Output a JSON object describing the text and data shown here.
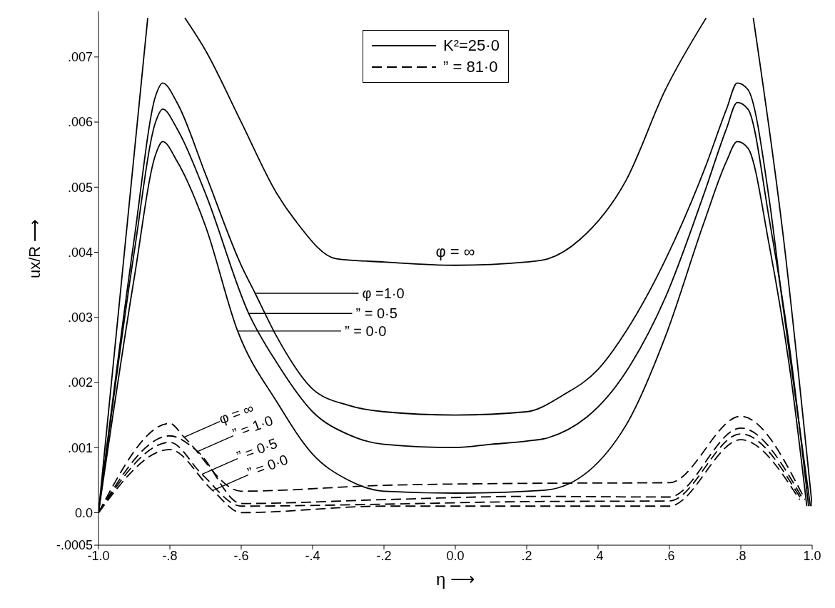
{
  "chart_data": {
    "type": "line",
    "xlabel": "η ⟶",
    "ylabel": "ux/R ⟶",
    "xlim": [
      -1,
      1
    ],
    "xticks": [
      {
        "value": -1,
        "label": "-1.0"
      },
      {
        "value": -0.8,
        "label": "-.8"
      },
      {
        "value": -0.6,
        "label": "-.6"
      },
      {
        "value": -0.4,
        "label": "-.4"
      },
      {
        "value": -0.2,
        "label": "-.2"
      },
      {
        "value": 0,
        "label": "0.0"
      },
      {
        "value": 0.2,
        "label": ".2"
      },
      {
        "value": 0.4,
        "label": ".4"
      },
      {
        "value": 0.6,
        "label": ".6"
      },
      {
        "value": 0.8,
        "label": ".8"
      },
      {
        "value": 1,
        "label": "1.0"
      }
    ],
    "ylim": [
      -0.0005,
      0.0077
    ],
    "yticks": [
      {
        "value": -0.0005,
        "label": "-.0005"
      },
      {
        "value": 0,
        "label": "0.0"
      },
      {
        "value": 0.001,
        "label": ".001"
      },
      {
        "value": 0.002,
        "label": ".002"
      },
      {
        "value": 0.003,
        "label": ".003"
      },
      {
        "value": 0.004,
        "label": ".004"
      },
      {
        "value": 0.005,
        "label": ".005"
      },
      {
        "value": 0.006,
        "label": ".006"
      },
      {
        "value": 0.007,
        "label": ".007"
      }
    ],
    "series": [
      {
        "color": "#000000",
        "line_style": "solid",
        "x": [
          -1,
          -0.862,
          -0.81,
          -0.758,
          -0.7,
          -0.6,
          -0.5,
          -0.45,
          -0.333,
          -0.2,
          0,
          0.2,
          0.26,
          0.35,
          0.478,
          0.589,
          0.703,
          0.77,
          0.835,
          0.92,
          1
        ],
        "values": [
          0,
          0.0076,
          null,
          0.0076,
          0.0071,
          0.006,
          0.0049,
          0.0045,
          0.0039,
          0.00385,
          0.0038,
          0.00385,
          0.0039,
          0.0042,
          0.0051,
          0.0065,
          0.0076,
          null,
          0.0076,
          0.0042,
          0.0001
        ]
      },
      {
        "color": "#000000",
        "line_style": "solid",
        "x": [
          -1,
          -0.9,
          -0.84,
          -0.82,
          -0.78,
          -0.7,
          -0.6,
          -0.561,
          -0.5,
          -0.4,
          -0.3,
          -0.2,
          0,
          0.2,
          0.3,
          0.4,
          0.48,
          0.59,
          0.7,
          0.76,
          0.79,
          0.82,
          0.88,
          0.915,
          0.995
        ],
        "values": [
          0,
          0.0042,
          0.0064,
          0.0066,
          0.0063,
          0.0052,
          0.0038,
          0.00337,
          0.0027,
          0.0019,
          0.00165,
          0.00155,
          0.0015,
          0.00155,
          0.0018,
          0.0022,
          0.0028,
          0.0039,
          0.0053,
          0.0062,
          0.0066,
          0.0065,
          0.0048,
          0.0033,
          0.0001
        ]
      },
      {
        "color": "#000000",
        "line_style": "solid",
        "x": [
          -1,
          -0.9,
          -0.84,
          -0.82,
          -0.78,
          -0.7,
          -0.579,
          -0.5,
          -0.4,
          -0.3,
          -0.2,
          0,
          0.1,
          0.2,
          0.26,
          0.478,
          0.589,
          0.697,
          0.76,
          0.79,
          0.82,
          0.88,
          0.94,
          0.99
        ],
        "values": [
          0,
          0.004,
          0.006,
          0.0062,
          0.0059,
          0.0049,
          0.00306,
          0.0023,
          0.00155,
          0.0012,
          0.00105,
          0.001,
          0.00105,
          0.0011,
          0.00115,
          0.00216,
          0.00331,
          0.0049,
          0.0059,
          0.0063,
          0.0062,
          0.0045,
          0.0024,
          0.0001
        ]
      },
      {
        "color": "#000000",
        "line_style": "solid",
        "x": [
          -1,
          -0.9,
          -0.84,
          -0.82,
          -0.78,
          -0.7,
          -0.61,
          -0.5,
          -0.4,
          -0.3,
          -0.2,
          0,
          0.2,
          0.26,
          0.478,
          0.589,
          0.697,
          0.76,
          0.79,
          0.82,
          0.88,
          0.94,
          0.985
        ],
        "values": [
          0,
          0.0036,
          0.0055,
          0.0057,
          0.0054,
          0.0044,
          0.00279,
          0.0017,
          0.0009,
          0.0005,
          0.00033,
          0.0003,
          0.00033,
          0.00035,
          0.00134,
          0.00271,
          0.00446,
          0.0054,
          0.0057,
          0.0056,
          0.0041,
          0.0021,
          0.0001
        ]
      },
      {
        "color": "#000000",
        "line_style": "dashed",
        "x": [
          -1,
          -0.8,
          -0.76,
          -0.6,
          -0.2,
          0.2,
          0.6,
          0.8,
          0.98
        ],
        "values": [
          0,
          0.00137,
          0.00116,
          0.00033,
          0.00042,
          0.00045,
          0.00046,
          0.00148,
          0.0002
        ]
      },
      {
        "color": "#000000",
        "line_style": "dashed",
        "x": [
          -1,
          -0.8,
          -0.722,
          -0.6,
          -0.2,
          0.2,
          0.6,
          0.8,
          0.975
        ],
        "values": [
          0,
          0.00118,
          0.00094,
          0.00014,
          0.0002,
          0.00025,
          0.00024,
          0.0013,
          0.0002
        ]
      },
      {
        "color": "#000000",
        "line_style": "dashed",
        "x": [
          -1,
          -0.8,
          -0.71,
          -0.6,
          -0.2,
          0.2,
          0.6,
          0.8,
          0.97
        ],
        "values": [
          0,
          0.00108,
          0.00059,
          0.0001,
          0.00013,
          0.00017,
          0.00018,
          0.00121,
          0.0002
        ]
      },
      {
        "color": "#000000",
        "line_style": "dashed",
        "x": [
          -1,
          -0.8,
          -0.68,
          -0.6,
          -0.2,
          0.2,
          0.6,
          0.8,
          0.965
        ],
        "values": [
          0,
          0.00097,
          0.00034,
          0,
          0.0001,
          0.0001,
          0.0001,
          0.00112,
          0.0002
        ]
      }
    ],
    "annotations": [
      "K²=25·0",
      "” = 81·0",
      {
        "text": "φ = ∞",
        "x": 0,
        "y": 0.0038
      },
      {
        "text": "φ =1·0",
        "x": -0.561,
        "y": 0.00337
      },
      {
        "text": "” = 0·5",
        "x": -0.579,
        "y": 0.00306
      },
      {
        "text": "” = 0·0",
        "x": -0.61,
        "y": 0.00279
      },
      {
        "text": "φ = ∞",
        "x": -0.76,
        "y": 0.00116
      },
      {
        "text": "” = 1·0",
        "x": -0.722,
        "y": 0.00094
      },
      {
        "text": "” = 0·5",
        "x": -0.71,
        "y": 0.00059
      },
      {
        "text": "” = 0·0",
        "x": -0.68,
        "y": 0.00034
      }
    ]
  }
}
